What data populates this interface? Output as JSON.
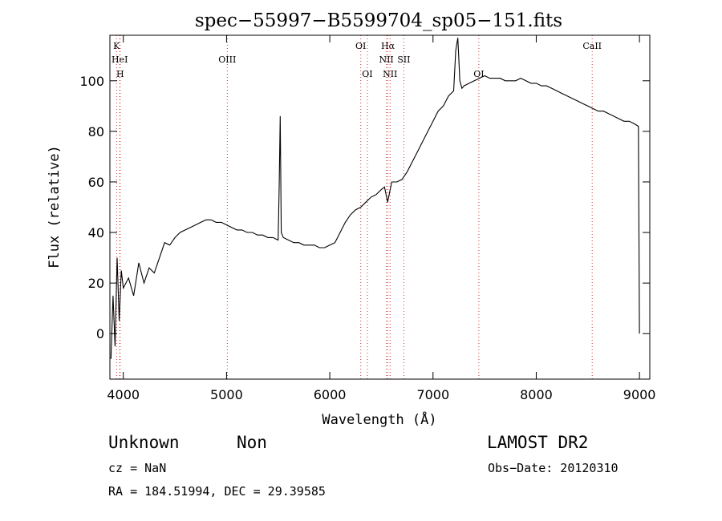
{
  "chart_data": {
    "type": "line",
    "title": "spec−55997−B5599704_sp05−151.fits",
    "xlabel": "Wavelength (Å)",
    "ylabel": "Flux (relative)",
    "xlim": [
      3870,
      9100
    ],
    "ylim": [
      -18,
      118
    ],
    "x_ticks": [
      4000,
      5000,
      6000,
      7000,
      8000,
      9000
    ],
    "y_ticks": [
      0,
      20,
      40,
      60,
      80,
      100
    ],
    "grid": false,
    "line_color": "#000000",
    "marker_color": "#cc3333",
    "series": [
      {
        "x": [
          3880,
          3900,
          3920,
          3940,
          3960,
          3980,
          4000,
          4050,
          4100,
          4150,
          4200,
          4250,
          4300,
          4350,
          4400,
          4450,
          4500,
          4550,
          4600,
          4650,
          4700,
          4750,
          4800,
          4850,
          4900,
          4950,
          5000,
          5050,
          5100,
          5150,
          5200,
          5250,
          5300,
          5350,
          5400,
          5450,
          5500,
          5510,
          5520,
          5530,
          5550,
          5600,
          5650,
          5700,
          5750,
          5800,
          5850,
          5900,
          5950,
          6000,
          6050,
          6100,
          6150,
          6200,
          6250,
          6300,
          6350,
          6400,
          6450,
          6500,
          6530,
          6560,
          6600,
          6650,
          6700,
          6750,
          6800,
          6850,
          6900,
          6950,
          7000,
          7050,
          7100,
          7150,
          7200,
          7220,
          7240,
          7260,
          7280,
          7300,
          7350,
          7400,
          7450,
          7500,
          7550,
          7600,
          7650,
          7700,
          7750,
          7800,
          7850,
          7900,
          7950,
          8000,
          8050,
          8100,
          8150,
          8200,
          8250,
          8300,
          8350,
          8400,
          8450,
          8500,
          8550,
          8600,
          8650,
          8700,
          8750,
          8800,
          8850,
          8900,
          8950,
          8990,
          9000
        ],
        "y": [
          -10,
          15,
          -5,
          30,
          5,
          25,
          18,
          22,
          15,
          28,
          20,
          26,
          24,
          30,
          36,
          35,
          38,
          40,
          41,
          42,
          43,
          44,
          45,
          45,
          44,
          44,
          43,
          42,
          41,
          41,
          40,
          40,
          39,
          39,
          38,
          38,
          37,
          58,
          86,
          40,
          38,
          37,
          36,
          36,
          35,
          35,
          35,
          34,
          34,
          35,
          36,
          40,
          44,
          47,
          49,
          50,
          52,
          54,
          55,
          57,
          58,
          52,
          60,
          60,
          61,
          64,
          68,
          72,
          76,
          80,
          84,
          88,
          90,
          94,
          96,
          112,
          117,
          100,
          97,
          98,
          99,
          100,
          101,
          102,
          101,
          101,
          101,
          100,
          100,
          100,
          101,
          100,
          99,
          99,
          98,
          98,
          97,
          96,
          95,
          94,
          93,
          92,
          91,
          90,
          89,
          88,
          88,
          87,
          86,
          85,
          84,
          84,
          83,
          82,
          0
        ]
      }
    ],
    "lines": [
      {
        "name": "K",
        "x": 3934,
        "row": 0
      },
      {
        "name": "HeI",
        "x": 3965,
        "row": 1
      },
      {
        "name": "H",
        "x": 3969,
        "row": 2
      },
      {
        "name": "OIII",
        "x": 5007,
        "row": 1
      },
      {
        "name": "OI",
        "x": 6300,
        "row": 0
      },
      {
        "name": "OI",
        "x": 6364,
        "row": 2
      },
      {
        "name": "Hα",
        "x": 6563,
        "row": 0
      },
      {
        "name": "NII",
        "x": 6548,
        "row": 1
      },
      {
        "name": "NII",
        "x": 6584,
        "row": 2
      },
      {
        "name": "SII",
        "x": 6717,
        "row": 1
      },
      {
        "name": "OI",
        "x": 7444,
        "row": 2
      },
      {
        "name": "CaII",
        "x": 8542,
        "row": 0
      }
    ]
  },
  "footer": {
    "class": "Unknown",
    "subclass": "Non",
    "survey": "LAMOST DR2",
    "cz": "cz = NaN",
    "obs_date": "Obs−Date: 20120310",
    "coords": "RA = 184.51994, DEC =  29.39585"
  }
}
